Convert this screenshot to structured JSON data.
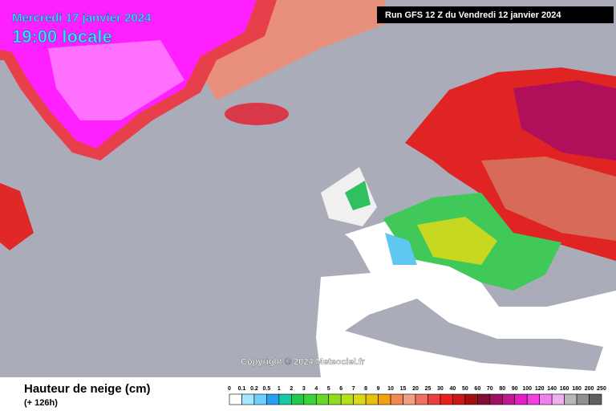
{
  "header": {
    "title": "Mercredi 17 janvier 2024",
    "time": "19:00 locale",
    "run": "Run GFS 12 Z du Vendredi 12 janvier 2024"
  },
  "copyright": "Copyright © 2024 Meteociel.fr",
  "legend": {
    "title": "Hauteur de neige (cm)",
    "lead": "(+ 126h)",
    "labels": [
      "0",
      "0.1",
      "0.2",
      "0.5",
      "1",
      "2",
      "3",
      "4",
      "5",
      "6",
      "7",
      "8",
      "9",
      "10",
      "15",
      "20",
      "25",
      "30",
      "40",
      "50",
      "60",
      "70",
      "80",
      "90",
      "100",
      "120",
      "140",
      "160",
      "180",
      "200",
      "250"
    ],
    "colors": [
      "#ffffff",
      "#a8e6ff",
      "#6ccfff",
      "#2aa0f0",
      "#18c8a0",
      "#22c84a",
      "#3cd23c",
      "#66d828",
      "#90dc20",
      "#b4e01c",
      "#d8d818",
      "#e8c010",
      "#f0a010",
      "#f08850",
      "#f0a080",
      "#f07060",
      "#e84040",
      "#e82020",
      "#c81818",
      "#a01010",
      "#801030",
      "#a01060",
      "#c01890",
      "#e020c0",
      "#f040e0",
      "#f080f0",
      "#f0b0f0",
      "#b8b8b8",
      "#909090",
      "#606060"
    ]
  }
}
